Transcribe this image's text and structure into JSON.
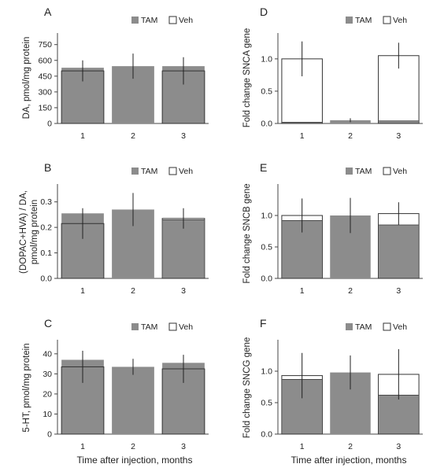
{
  "x_axis_label": "Time after injection, months",
  "chart_data": [
    {
      "panel": "A",
      "type": "bar",
      "ylabel": "DA, pmol/mg protein",
      "categories": [
        "1",
        "2",
        "3"
      ],
      "ylim": [
        0,
        860
      ],
      "yticks": [
        "0",
        "150",
        "300",
        "450",
        "600",
        "750"
      ],
      "legend": [
        "TAM",
        "Veh"
      ],
      "legend_position": "top-right",
      "series": [
        {
          "name": "TAM",
          "values": [
            530,
            545,
            545
          ],
          "err": [
            null,
            120,
            null
          ]
        },
        {
          "name": "Veh",
          "values": [
            500,
            null,
            500
          ],
          "err": [
            100,
            null,
            130
          ]
        }
      ]
    },
    {
      "panel": "B",
      "type": "bar",
      "ylabel": "(DOPAC+HVA) / DA, pmol/mg protein",
      "categories": [
        "1",
        "2",
        "3"
      ],
      "ylim": [
        0,
        0.37
      ],
      "yticks": [
        "0.0",
        "0.1",
        "0.2",
        "0.3"
      ],
      "legend": [
        "TAM",
        "Veh"
      ],
      "legend_position": "top-right",
      "series": [
        {
          "name": "TAM",
          "values": [
            0.255,
            0.27,
            0.23
          ],
          "err": [
            null,
            0.065,
            null
          ]
        },
        {
          "name": "Veh",
          "values": [
            0.215,
            null,
            0.235
          ],
          "err": [
            0.06,
            null,
            0.04
          ]
        }
      ]
    },
    {
      "panel": "C",
      "type": "bar",
      "ylabel": "5-HT, pmol/mg protein",
      "categories": [
        "1",
        "2",
        "3"
      ],
      "ylim": [
        0,
        47
      ],
      "yticks": [
        "0",
        "10",
        "20",
        "30",
        "40"
      ],
      "legend": [
        "TAM",
        "Veh"
      ],
      "legend_position": "top-right",
      "series": [
        {
          "name": "TAM",
          "values": [
            37,
            33.5,
            35.5
          ],
          "err": [
            null,
            4,
            null
          ]
        },
        {
          "name": "Veh",
          "values": [
            33.5,
            null,
            32.5
          ],
          "err": [
            8,
            null,
            7
          ]
        }
      ]
    },
    {
      "panel": "D",
      "type": "bar",
      "ylabel": "Fold change SNCA gene",
      "categories": [
        "1",
        "2",
        "3"
      ],
      "ylim": [
        0,
        1.4
      ],
      "yticks": [
        "0.0",
        "0.5",
        "1.0"
      ],
      "legend": [
        "TAM",
        "Veh"
      ],
      "legend_position": "top-right",
      "series": [
        {
          "name": "TAM",
          "values": [
            0.02,
            0.05,
            0.04
          ],
          "err": [
            null,
            0.03,
            null
          ]
        },
        {
          "name": "Veh",
          "values": [
            1.0,
            null,
            1.05
          ],
          "err": [
            0.27,
            null,
            0.2
          ]
        }
      ]
    },
    {
      "panel": "E",
      "type": "bar",
      "ylabel": "Fold change SNCB gene",
      "categories": [
        "1",
        "2",
        "3"
      ],
      "ylim": [
        0,
        1.5
      ],
      "yticks": [
        "0.0",
        "0.5",
        "1.0"
      ],
      "legend": [
        "TAM",
        "Veh"
      ],
      "legend_position": "top-right",
      "series": [
        {
          "name": "TAM",
          "values": [
            0.92,
            1.0,
            0.85
          ],
          "err": [
            null,
            0.28,
            null
          ]
        },
        {
          "name": "Veh",
          "values": [
            1.0,
            null,
            1.03
          ],
          "err": [
            0.27,
            null,
            0.18
          ]
        }
      ]
    },
    {
      "panel": "F",
      "type": "bar",
      "ylabel": "Fold change SNCG gene",
      "categories": [
        "1",
        "2",
        "3"
      ],
      "ylim": [
        0,
        1.5
      ],
      "yticks": [
        "0.0",
        "0.5",
        "1.0"
      ],
      "legend": [
        "TAM",
        "Veh"
      ],
      "legend_position": "top-right",
      "series": [
        {
          "name": "TAM",
          "values": [
            0.87,
            0.98,
            0.62
          ],
          "err": [
            null,
            0.27,
            null
          ]
        },
        {
          "name": "Veh",
          "values": [
            0.93,
            null,
            0.95
          ],
          "err": [
            0.36,
            null,
            0.4
          ]
        }
      ]
    }
  ],
  "colors": {
    "tam": "#8c8c8c",
    "veh": "#ffffff",
    "axis": "#444444",
    "text": "#222222"
  }
}
